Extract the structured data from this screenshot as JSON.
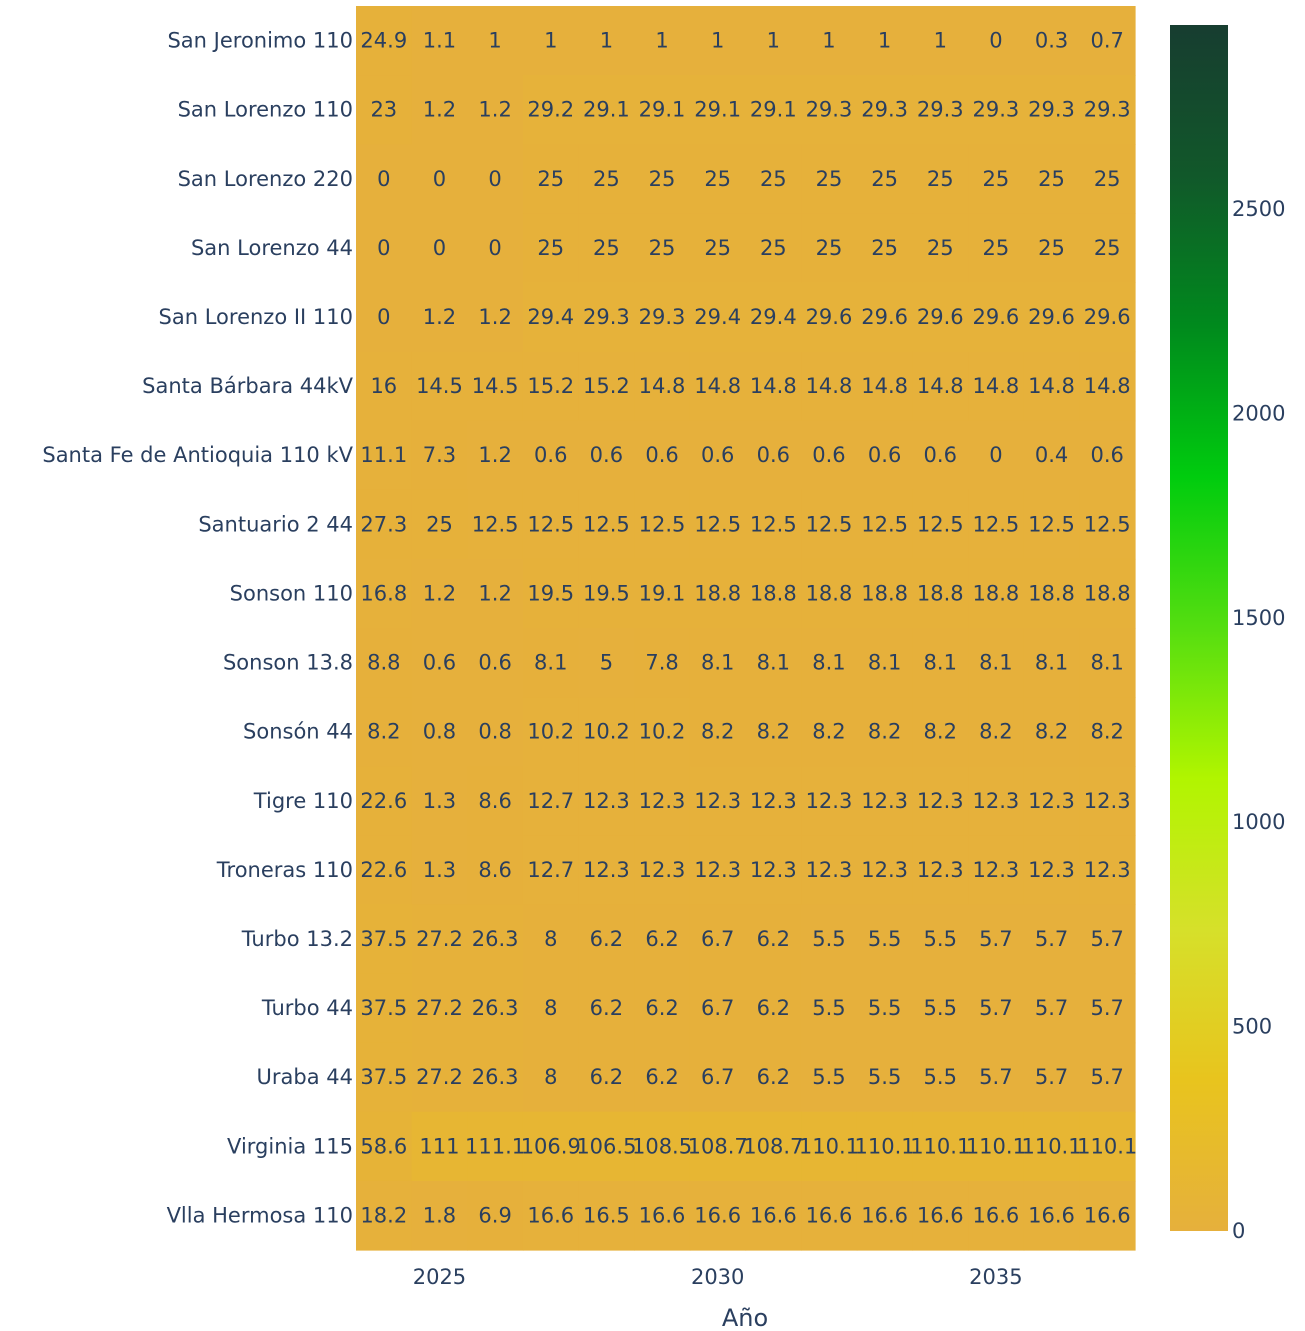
{
  "chart_data": {
    "type": "heatmap",
    "title": "",
    "xlabel": "Año",
    "ylabel": "",
    "x": [
      2024,
      2025,
      2026,
      2027,
      2028,
      2029,
      2030,
      2031,
      2032,
      2033,
      2034,
      2035,
      2036,
      2037
    ],
    "x_tick_values": [
      2025,
      2030,
      2035
    ],
    "x_tick_labels": [
      "2025",
      "2030",
      "2035"
    ],
    "y": [
      "San Jeronimo 110",
      "San Lorenzo 110",
      "San Lorenzo 220",
      "San Lorenzo 44",
      "San Lorenzo II 110",
      "Santa Bárbara 44kV",
      "Santa Fe de Antioquia 110 kV",
      "Santuario 2 44",
      "Sonson 110",
      "Sonson 13.8",
      "Sonsón 44",
      "Tigre 110",
      "Troneras 110",
      "Turbo 13.2",
      "Turbo 44",
      "Uraba 44",
      "Virginia 115",
      "Vlla Hermosa 110"
    ],
    "z": [
      [
        24.9,
        1.1,
        1,
        1,
        1,
        1,
        1,
        1,
        1,
        1,
        1,
        0,
        0.3,
        0.7
      ],
      [
        23,
        1.2,
        1.2,
        29.2,
        29.1,
        29.1,
        29.1,
        29.1,
        29.3,
        29.3,
        29.3,
        29.3,
        29.3,
        29.3
      ],
      [
        0,
        0,
        0,
        25,
        25,
        25,
        25,
        25,
        25,
        25,
        25,
        25,
        25,
        25
      ],
      [
        0,
        0,
        0,
        25,
        25,
        25,
        25,
        25,
        25,
        25,
        25,
        25,
        25,
        25
      ],
      [
        0,
        1.2,
        1.2,
        29.4,
        29.3,
        29.3,
        29.4,
        29.4,
        29.6,
        29.6,
        29.6,
        29.6,
        29.6,
        29.6
      ],
      [
        16,
        14.5,
        14.5,
        15.2,
        15.2,
        14.8,
        14.8,
        14.8,
        14.8,
        14.8,
        14.8,
        14.8,
        14.8,
        14.8
      ],
      [
        11.1,
        7.3,
        1.2,
        0.6,
        0.6,
        0.6,
        0.6,
        0.6,
        0.6,
        0.6,
        0.6,
        0,
        0.4,
        0.6
      ],
      [
        27.3,
        25,
        12.5,
        12.5,
        12.5,
        12.5,
        12.5,
        12.5,
        12.5,
        12.5,
        12.5,
        12.5,
        12.5,
        12.5
      ],
      [
        16.8,
        1.2,
        1.2,
        19.5,
        19.5,
        19.1,
        18.8,
        18.8,
        18.8,
        18.8,
        18.8,
        18.8,
        18.8,
        18.8
      ],
      [
        8.8,
        0.6,
        0.6,
        8.1,
        5,
        7.8,
        8.1,
        8.1,
        8.1,
        8.1,
        8.1,
        8.1,
        8.1,
        8.1
      ],
      [
        8.2,
        0.8,
        0.8,
        10.2,
        10.2,
        10.2,
        8.2,
        8.2,
        8.2,
        8.2,
        8.2,
        8.2,
        8.2,
        8.2
      ],
      [
        22.6,
        1.3,
        8.6,
        12.7,
        12.3,
        12.3,
        12.3,
        12.3,
        12.3,
        12.3,
        12.3,
        12.3,
        12.3,
        12.3
      ],
      [
        22.6,
        1.3,
        8.6,
        12.7,
        12.3,
        12.3,
        12.3,
        12.3,
        12.3,
        12.3,
        12.3,
        12.3,
        12.3,
        12.3
      ],
      [
        37.5,
        27.2,
        26.3,
        8,
        6.2,
        6.2,
        6.7,
        6.2,
        5.5,
        5.5,
        5.5,
        5.7,
        5.7,
        5.7
      ],
      [
        37.5,
        27.2,
        26.3,
        8,
        6.2,
        6.2,
        6.7,
        6.2,
        5.5,
        5.5,
        5.5,
        5.7,
        5.7,
        5.7
      ],
      [
        37.5,
        27.2,
        26.3,
        8,
        6.2,
        6.2,
        6.7,
        6.2,
        5.5,
        5.5,
        5.5,
        5.7,
        5.7,
        5.7
      ],
      [
        58.6,
        111,
        111.1,
        106.9,
        106.5,
        108.5,
        108.7,
        108.7,
        110.1,
        110.1,
        110.1,
        110.1,
        110.1,
        110.1
      ],
      [
        18.2,
        1.8,
        6.9,
        16.6,
        16.5,
        16.6,
        16.6,
        16.6,
        16.6,
        16.6,
        16.6,
        16.6,
        16.6,
        16.6
      ]
    ],
    "colorscale": [
      "#e6b03c",
      "#e8c41e",
      "#d6e02a",
      "#b1f500",
      "#55de10",
      "#00cc0e",
      "#008a1d",
      "#11582a",
      "#173d30"
    ],
    "colorbar": {
      "range": [
        0,
        2950
      ],
      "tick_values": [
        0,
        500,
        1000,
        1500,
        2000,
        2500
      ],
      "tick_labels": [
        "0",
        "500",
        "1000",
        "1500",
        "2000",
        "2500"
      ]
    },
    "grid": false,
    "legend": "colorbar-right"
  }
}
